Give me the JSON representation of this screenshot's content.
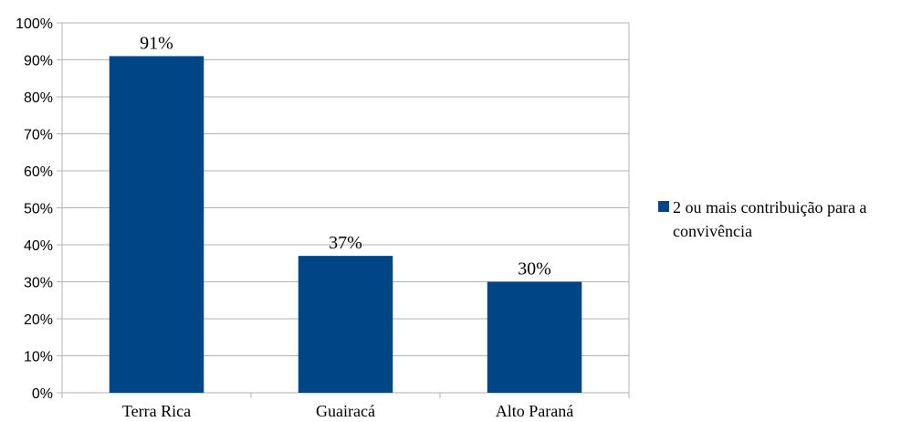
{
  "chart_data": {
    "type": "bar",
    "title": "",
    "xlabel": "",
    "ylabel": "",
    "categories": [
      "Terra Rica",
      "Guairacá",
      "Alto Paraná"
    ],
    "series": [
      {
        "name": "2 ou mais contribuição para a convivência",
        "values": [
          91,
          37,
          30
        ],
        "data_labels": [
          "91%",
          "37%",
          "30%"
        ]
      }
    ],
    "ylim": [
      0,
      100
    ],
    "y_ticks": [
      "0%",
      "10%",
      "20%",
      "30%",
      "40%",
      "50%",
      "60%",
      "70%",
      "80%",
      "90%",
      "100%"
    ],
    "grid": true,
    "legend_position": "right",
    "legend_lines": [
      "2 ou mais contribuição para a",
      "convivência"
    ],
    "colors": {
      "bar": "#004586",
      "grid": "#b3b3b3",
      "axis": "#b3b3b3"
    }
  }
}
